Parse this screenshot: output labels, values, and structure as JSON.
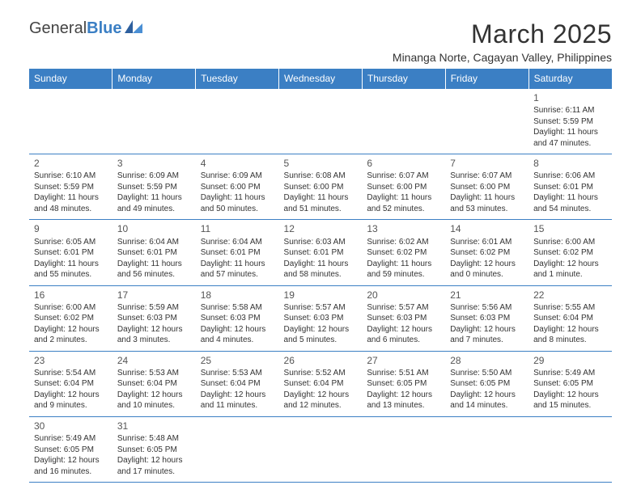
{
  "logo": {
    "part1": "General",
    "part2": "Blue"
  },
  "title": "March 2025",
  "location": "Minanga Norte, Cagayan Valley, Philippines",
  "colors": {
    "header_bg": "#3b7fc4",
    "header_text": "#ffffff",
    "border": "#3b7fc4",
    "text": "#333333",
    "daynum": "#555555"
  },
  "weekdays": [
    "Sunday",
    "Monday",
    "Tuesday",
    "Wednesday",
    "Thursday",
    "Friday",
    "Saturday"
  ],
  "weeks": [
    [
      null,
      null,
      null,
      null,
      null,
      null,
      {
        "n": "1",
        "sr": "6:11 AM",
        "ss": "5:59 PM",
        "dl": "11 hours and 47 minutes."
      }
    ],
    [
      {
        "n": "2",
        "sr": "6:10 AM",
        "ss": "5:59 PM",
        "dl": "11 hours and 48 minutes."
      },
      {
        "n": "3",
        "sr": "6:09 AM",
        "ss": "5:59 PM",
        "dl": "11 hours and 49 minutes."
      },
      {
        "n": "4",
        "sr": "6:09 AM",
        "ss": "6:00 PM",
        "dl": "11 hours and 50 minutes."
      },
      {
        "n": "5",
        "sr": "6:08 AM",
        "ss": "6:00 PM",
        "dl": "11 hours and 51 minutes."
      },
      {
        "n": "6",
        "sr": "6:07 AM",
        "ss": "6:00 PM",
        "dl": "11 hours and 52 minutes."
      },
      {
        "n": "7",
        "sr": "6:07 AM",
        "ss": "6:00 PM",
        "dl": "11 hours and 53 minutes."
      },
      {
        "n": "8",
        "sr": "6:06 AM",
        "ss": "6:01 PM",
        "dl": "11 hours and 54 minutes."
      }
    ],
    [
      {
        "n": "9",
        "sr": "6:05 AM",
        "ss": "6:01 PM",
        "dl": "11 hours and 55 minutes."
      },
      {
        "n": "10",
        "sr": "6:04 AM",
        "ss": "6:01 PM",
        "dl": "11 hours and 56 minutes."
      },
      {
        "n": "11",
        "sr": "6:04 AM",
        "ss": "6:01 PM",
        "dl": "11 hours and 57 minutes."
      },
      {
        "n": "12",
        "sr": "6:03 AM",
        "ss": "6:01 PM",
        "dl": "11 hours and 58 minutes."
      },
      {
        "n": "13",
        "sr": "6:02 AM",
        "ss": "6:02 PM",
        "dl": "11 hours and 59 minutes."
      },
      {
        "n": "14",
        "sr": "6:01 AM",
        "ss": "6:02 PM",
        "dl": "12 hours and 0 minutes."
      },
      {
        "n": "15",
        "sr": "6:00 AM",
        "ss": "6:02 PM",
        "dl": "12 hours and 1 minute."
      }
    ],
    [
      {
        "n": "16",
        "sr": "6:00 AM",
        "ss": "6:02 PM",
        "dl": "12 hours and 2 minutes."
      },
      {
        "n": "17",
        "sr": "5:59 AM",
        "ss": "6:03 PM",
        "dl": "12 hours and 3 minutes."
      },
      {
        "n": "18",
        "sr": "5:58 AM",
        "ss": "6:03 PM",
        "dl": "12 hours and 4 minutes."
      },
      {
        "n": "19",
        "sr": "5:57 AM",
        "ss": "6:03 PM",
        "dl": "12 hours and 5 minutes."
      },
      {
        "n": "20",
        "sr": "5:57 AM",
        "ss": "6:03 PM",
        "dl": "12 hours and 6 minutes."
      },
      {
        "n": "21",
        "sr": "5:56 AM",
        "ss": "6:03 PM",
        "dl": "12 hours and 7 minutes."
      },
      {
        "n": "22",
        "sr": "5:55 AM",
        "ss": "6:04 PM",
        "dl": "12 hours and 8 minutes."
      }
    ],
    [
      {
        "n": "23",
        "sr": "5:54 AM",
        "ss": "6:04 PM",
        "dl": "12 hours and 9 minutes."
      },
      {
        "n": "24",
        "sr": "5:53 AM",
        "ss": "6:04 PM",
        "dl": "12 hours and 10 minutes."
      },
      {
        "n": "25",
        "sr": "5:53 AM",
        "ss": "6:04 PM",
        "dl": "12 hours and 11 minutes."
      },
      {
        "n": "26",
        "sr": "5:52 AM",
        "ss": "6:04 PM",
        "dl": "12 hours and 12 minutes."
      },
      {
        "n": "27",
        "sr": "5:51 AM",
        "ss": "6:05 PM",
        "dl": "12 hours and 13 minutes."
      },
      {
        "n": "28",
        "sr": "5:50 AM",
        "ss": "6:05 PM",
        "dl": "12 hours and 14 minutes."
      },
      {
        "n": "29",
        "sr": "5:49 AM",
        "ss": "6:05 PM",
        "dl": "12 hours and 15 minutes."
      }
    ],
    [
      {
        "n": "30",
        "sr": "5:49 AM",
        "ss": "6:05 PM",
        "dl": "12 hours and 16 minutes."
      },
      {
        "n": "31",
        "sr": "5:48 AM",
        "ss": "6:05 PM",
        "dl": "12 hours and 17 minutes."
      },
      null,
      null,
      null,
      null,
      null
    ]
  ],
  "labels": {
    "sunrise": "Sunrise:",
    "sunset": "Sunset:",
    "daylight": "Daylight:"
  }
}
